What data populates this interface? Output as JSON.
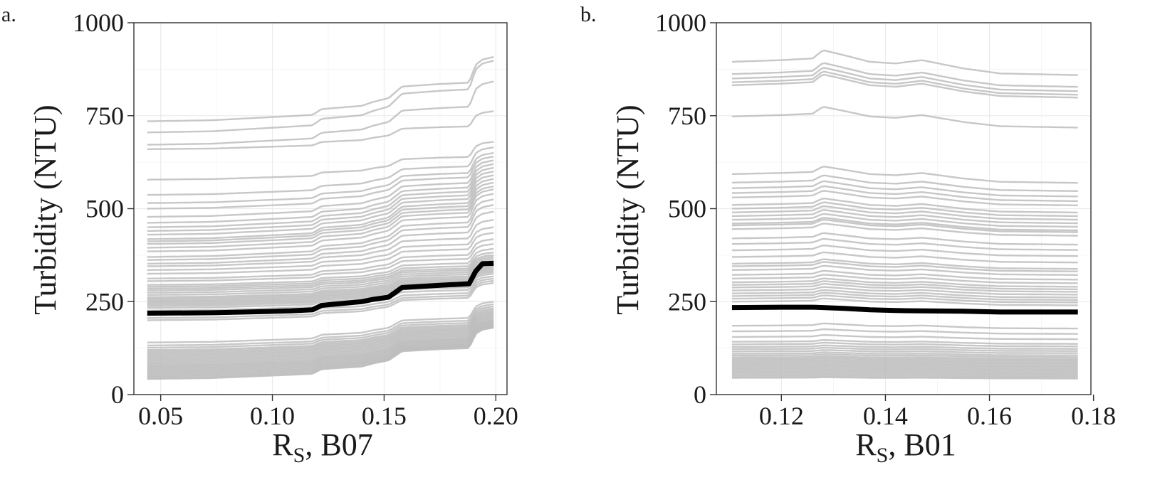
{
  "chart_data": [
    {
      "panel_label": "a.",
      "type": "line",
      "title": "",
      "xlabel": "R",
      "xlabel_subscript": "S",
      "xlabel_suffix": ", B07",
      "ylabel": "Turbidity (NTU)",
      "xlim": [
        0.038,
        0.205
      ],
      "ylim": [
        0,
        1000
      ],
      "xticks": [
        0.05,
        0.1,
        0.15,
        0.2
      ],
      "xtick_labels": [
        "0.05",
        "0.10",
        "0.15",
        "0.20"
      ],
      "yticks": [
        0,
        250,
        500,
        750,
        1000
      ],
      "ytick_labels": [
        "0",
        "250",
        "500",
        "750",
        "1000"
      ],
      "grid": true,
      "legend": "none",
      "colors": {
        "ice": "#bdbdbd",
        "mean": "#000000",
        "grid": "#ebebeb",
        "axis": "#333333"
      },
      "x_range": [
        0.044,
        0.199
      ],
      "ice_profile": {
        "x": [
          0.044,
          0.073,
          0.088,
          0.108,
          0.118,
          0.122,
          0.14,
          0.145,
          0.152,
          0.158,
          0.175,
          0.188,
          0.191,
          0.194,
          0.199
        ],
        "shape": [
          0,
          0.008,
          0.022,
          0.04,
          0.05,
          0.095,
          0.12,
          0.15,
          0.18,
          0.27,
          0.29,
          0.3,
          0.44,
          0.48,
          0.5
        ]
      },
      "ice_start_values": [
        735,
        705,
        672,
        660,
        578,
        537,
        515,
        500,
        478,
        462,
        450,
        440,
        430,
        418,
        412,
        405,
        395,
        385,
        370,
        362,
        352,
        345,
        335,
        325,
        312,
        305,
        295,
        290,
        285,
        280,
        274,
        268,
        262,
        258,
        254,
        250,
        246,
        242,
        238,
        233,
        226,
        214,
        206,
        200,
        140,
        132,
        126,
        120,
        116,
        112,
        108,
        104,
        100,
        96,
        92,
        88,
        84,
        80,
        77,
        74,
        71,
        68,
        65,
        62,
        59,
        56,
        53,
        50,
        47,
        44,
        42
      ],
      "ice_end_values": [
        908,
        898,
        842,
        762,
        680,
        665,
        650,
        640,
        630,
        620,
        610,
        600,
        590,
        580,
        570,
        560,
        552,
        540,
        525,
        510,
        492,
        470,
        450,
        435,
        418,
        405,
        392,
        382,
        375,
        370,
        365,
        360,
        355,
        350,
        346,
        342,
        338,
        334,
        330,
        325,
        318,
        312,
        306,
        300,
        250,
        243,
        237,
        232,
        228,
        224,
        221,
        218,
        215,
        212,
        209,
        206,
        203,
        200,
        198,
        196,
        194,
        192,
        190,
        188,
        186,
        185,
        184,
        183,
        182,
        181,
        180
      ],
      "mean_curve": {
        "x": [
          0.044,
          0.073,
          0.088,
          0.108,
          0.118,
          0.122,
          0.14,
          0.145,
          0.152,
          0.158,
          0.175,
          0.188,
          0.191,
          0.194,
          0.199
        ],
        "y": [
          219,
          220,
          222,
          225,
          228,
          240,
          250,
          256,
          262,
          288,
          294,
          298,
          332,
          352,
          353
        ]
      }
    },
    {
      "panel_label": "b.",
      "type": "line",
      "title": "",
      "xlabel": "R",
      "xlabel_subscript": "S",
      "xlabel_suffix": ", B01",
      "ylabel": "Turbidity (NTU)",
      "xlim": [
        0.1075,
        0.1795
      ],
      "ylim": [
        0,
        1000
      ],
      "xticks": [
        0.12,
        0.14,
        0.16,
        0.18
      ],
      "xtick_labels": [
        "0.12",
        "0.14",
        "0.16",
        "0.18"
      ],
      "yticks": [
        0,
        250,
        500,
        750,
        1000
      ],
      "ytick_labels": [
        "0",
        "250",
        "500",
        "750",
        "1000"
      ],
      "grid": true,
      "legend": "none",
      "colors": {
        "ice": "#bdbdbd",
        "mean": "#000000",
        "grid": "#ebebeb",
        "axis": "#333333"
      },
      "x_range": [
        0.1105,
        0.177
      ],
      "ice_profile": {
        "x": [
          0.1105,
          0.12,
          0.126,
          0.128,
          0.132,
          0.137,
          0.142,
          0.147,
          0.155,
          0.162,
          0.177
        ],
        "shape": [
          0,
          0.005,
          0.01,
          0.035,
          0.02,
          0.0,
          -0.005,
          0.005,
          -0.02,
          -0.035,
          -0.04
        ]
      },
      "ice_start_values": [
        895,
        862,
        850,
        840,
        832,
        748,
        593,
        570,
        555,
        542,
        530,
        510,
        500,
        490,
        480,
        470,
        460,
        455,
        445,
        420,
        405,
        388,
        370,
        352,
        345,
        335,
        322,
        312,
        302,
        295,
        288,
        280,
        272,
        265,
        258,
        250,
        185,
        170,
        155,
        142,
        135,
        128,
        122,
        116,
        110,
        105,
        100,
        96,
        92,
        88,
        84,
        80,
        76,
        72,
        68,
        64,
        60,
        56,
        52,
        48,
        45
      ],
      "mean_curve": {
        "x": [
          0.1105,
          0.12,
          0.126,
          0.128,
          0.132,
          0.137,
          0.142,
          0.147,
          0.155,
          0.162,
          0.177
        ],
        "y": [
          234,
          235,
          235,
          234,
          232,
          228,
          226,
          225,
          224,
          222,
          222
        ]
      }
    }
  ]
}
